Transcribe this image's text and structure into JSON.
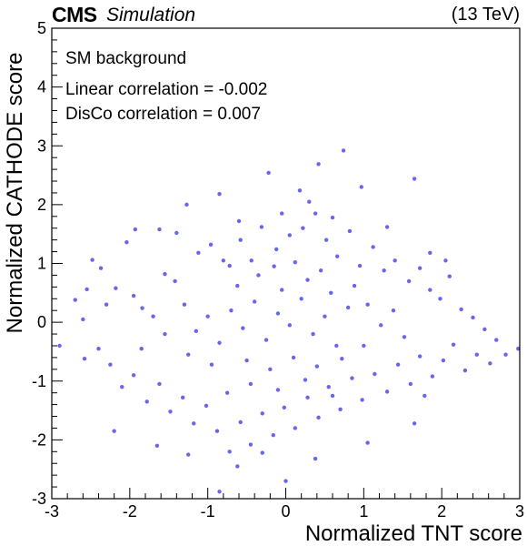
{
  "header": {
    "experiment": "CMS",
    "status": "Simulation",
    "energy": "(13 TeV)"
  },
  "annotations": {
    "sample": "SM background",
    "linear_corr": "Linear correlation = -0.002",
    "disco_corr": "DisCo correlation = 0.007"
  },
  "colors": {
    "marker": "#6666ee",
    "axis": "#000000",
    "background": "#ffffff"
  },
  "chart_data": {
    "type": "scatter",
    "title": "",
    "xlabel": "Normalized TNT score",
    "ylabel": "Normalized CATHODE score",
    "xlim": [
      -3,
      3
    ],
    "ylim": [
      -3,
      5
    ],
    "xticks": [
      -3,
      -2,
      -1,
      0,
      1,
      2,
      3
    ],
    "yticks": [
      -3,
      -2,
      -1,
      0,
      1,
      2,
      3,
      4,
      5
    ],
    "grid": false,
    "series": [
      {
        "points": [
          [
            0.74,
            2.92
          ],
          [
            0.42,
            2.69
          ],
          [
            -0.22,
            2.54
          ],
          [
            1.65,
            2.44
          ],
          [
            0.18,
            2.24
          ],
          [
            0.97,
            2.3
          ],
          [
            -0.85,
            2.18
          ],
          [
            -1.27,
            2.0
          ],
          [
            -1.93,
            1.58
          ],
          [
            -2.04,
            1.36
          ],
          [
            -1.62,
            1.58
          ],
          [
            -2.48,
            1.06
          ],
          [
            -2.37,
            0.92
          ],
          [
            -2.55,
            0.56
          ],
          [
            -2.7,
            0.38
          ],
          [
            -2.3,
            0.3
          ],
          [
            -2.18,
            0.58
          ],
          [
            -1.95,
            0.45
          ],
          [
            -1.84,
            0.24
          ],
          [
            -1.55,
            0.82
          ],
          [
            -1.42,
            0.7
          ],
          [
            -1.12,
            1.18
          ],
          [
            -0.96,
            1.32
          ],
          [
            -0.72,
            0.96
          ],
          [
            -0.58,
            1.4
          ],
          [
            -0.44,
            1.05
          ],
          [
            -0.31,
            1.62
          ],
          [
            -0.12,
            1.24
          ],
          [
            0.05,
            1.48
          ],
          [
            0.22,
            1.6
          ],
          [
            0.38,
            1.85
          ],
          [
            0.52,
            1.4
          ],
          [
            0.66,
            1.12
          ],
          [
            0.82,
            1.55
          ],
          [
            0.95,
            0.96
          ],
          [
            1.12,
            1.28
          ],
          [
            1.26,
            0.88
          ],
          [
            1.4,
            1.05
          ],
          [
            1.58,
            0.7
          ],
          [
            1.72,
            0.92
          ],
          [
            1.85,
            0.55
          ],
          [
            1.98,
            0.4
          ],
          [
            2.1,
            0.78
          ],
          [
            2.25,
            0.22
          ],
          [
            2.4,
            0.08
          ],
          [
            2.55,
            -0.12
          ],
          [
            2.7,
            -0.3
          ],
          [
            2.82,
            -0.55
          ],
          [
            2.98,
            -0.45
          ],
          [
            2.62,
            -0.7
          ],
          [
            2.45,
            -0.55
          ],
          [
            2.3,
            -0.82
          ],
          [
            2.15,
            -0.38
          ],
          [
            2.02,
            -0.65
          ],
          [
            1.88,
            -0.92
          ],
          [
            1.72,
            -0.58
          ],
          [
            1.6,
            -1.05
          ],
          [
            1.44,
            -0.72
          ],
          [
            1.3,
            -1.18
          ],
          [
            1.14,
            -0.88
          ],
          [
            0.98,
            -1.32
          ],
          [
            0.85,
            -0.95
          ],
          [
            0.7,
            -1.48
          ],
          [
            0.55,
            -1.1
          ],
          [
            0.42,
            -1.62
          ],
          [
            0.28,
            -1.28
          ],
          [
            0.12,
            -1.8
          ],
          [
            -0.02,
            -1.45
          ],
          [
            -0.16,
            -1.92
          ],
          [
            -0.3,
            -1.55
          ],
          [
            -0.45,
            -2.08
          ],
          [
            -0.58,
            -1.7
          ],
          [
            -0.72,
            -2.2
          ],
          [
            -0.88,
            -1.85
          ],
          [
            -1.02,
            -1.42
          ],
          [
            -1.18,
            -1.72
          ],
          [
            -1.32,
            -1.28
          ],
          [
            -1.48,
            -1.52
          ],
          [
            -1.62,
            -1.05
          ],
          [
            -1.78,
            -1.35
          ],
          [
            -1.95,
            -0.9
          ],
          [
            -2.1,
            -1.1
          ],
          [
            -2.25,
            -0.72
          ],
          [
            -2.4,
            -0.45
          ],
          [
            -2.58,
            -0.62
          ],
          [
            -2.9,
            -0.4
          ],
          [
            -2.2,
            -1.85
          ],
          [
            -1.65,
            -2.1
          ],
          [
            -1.25,
            -2.25
          ],
          [
            -0.62,
            -2.45
          ],
          [
            -0.85,
            -2.88
          ],
          [
            0.0,
            -2.7
          ],
          [
            0.38,
            -2.32
          ],
          [
            -0.3,
            -2.22
          ],
          [
            1.05,
            -2.05
          ],
          [
            1.65,
            -1.72
          ],
          [
            -0.7,
            0.2
          ],
          [
            -0.55,
            -0.1
          ],
          [
            -0.4,
            0.35
          ],
          [
            -0.25,
            -0.3
          ],
          [
            -0.1,
            0.15
          ],
          [
            0.05,
            -0.05
          ],
          [
            0.2,
            0.4
          ],
          [
            0.35,
            -0.2
          ],
          [
            0.5,
            0.1
          ],
          [
            0.65,
            -0.4
          ],
          [
            0.8,
            0.25
          ],
          [
            -0.85,
            -0.35
          ],
          [
            -1.0,
            0.1
          ],
          [
            -1.15,
            -0.15
          ],
          [
            -1.3,
            0.3
          ],
          [
            -0.62,
            0.62
          ],
          [
            -0.35,
            0.8
          ],
          [
            -0.05,
            0.55
          ],
          [
            0.28,
            0.72
          ],
          [
            0.58,
            0.5
          ],
          [
            0.88,
            0.62
          ],
          [
            1.05,
            0.3
          ],
          [
            1.22,
            -0.05
          ],
          [
            1.38,
            0.2
          ],
          [
            1.52,
            -0.25
          ],
          [
            -0.5,
            -0.65
          ],
          [
            -0.2,
            -0.8
          ],
          [
            0.1,
            -0.6
          ],
          [
            0.4,
            -0.75
          ],
          [
            0.72,
            -0.62
          ],
          [
            -0.95,
            -0.72
          ],
          [
            -1.25,
            -0.55
          ],
          [
            -1.55,
            -0.2
          ],
          [
            -1.7,
            0.1
          ],
          [
            -1.85,
            -0.45
          ],
          [
            -0.15,
            0.95
          ],
          [
            0.12,
            1.02
          ],
          [
            0.45,
            0.88
          ],
          [
            -0.8,
            1.05
          ],
          [
            1.0,
            -0.4
          ],
          [
            -0.45,
            -1.05
          ],
          [
            -0.1,
            -1.15
          ],
          [
            0.25,
            -0.98
          ],
          [
            0.6,
            -1.25
          ],
          [
            -0.75,
            -1.2
          ],
          [
            1.85,
            1.18
          ],
          [
            2.05,
            1.05
          ],
          [
            1.78,
            -1.25
          ],
          [
            -2.6,
            0.05
          ],
          [
            -1.4,
            1.52
          ],
          [
            0.3,
            2.05
          ],
          [
            -0.05,
            1.85
          ],
          [
            0.6,
            1.78
          ],
          [
            -0.6,
            1.72
          ],
          [
            1.3,
            1.62
          ]
        ]
      }
    ]
  }
}
